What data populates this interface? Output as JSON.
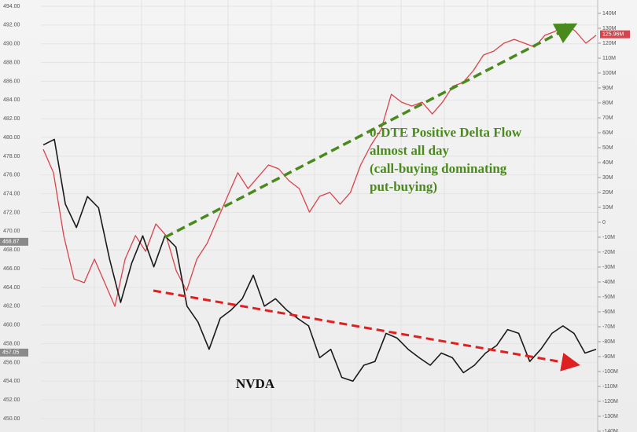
{
  "chart_data": {
    "type": "line",
    "annotations": [
      "0-DTE Positive Delta Flow",
      "almost all day",
      "(call-buying dominating",
      "put-buying)",
      "NVDA"
    ],
    "series": [
      {
        "color": "#1a1a1a",
        "values": [
          479.2,
          479.8,
          472.9,
          470.4,
          473.7,
          472.5,
          467.0,
          462.4,
          466.6,
          469.5,
          466.2,
          469.5,
          468.3,
          462.0,
          460.3,
          457.4,
          460.7,
          461.6,
          462.8,
          465.3,
          462.0,
          462.8,
          461.6,
          460.7,
          459.9,
          456.5,
          457.4,
          454.4,
          454.0,
          455.7,
          456.1,
          459.1,
          458.6,
          457.4,
          456.5,
          455.7,
          457.0,
          456.5,
          454.9,
          455.7,
          457.0,
          457.8,
          459.5,
          459.1,
          456.1,
          457.4,
          459.1,
          459.9,
          459.1,
          457.0,
          457.4
        ]
      },
      {
        "color": "#d9434b",
        "axis": "y2",
        "values": [
          48.9,
          33.2,
          -8.9,
          -37.9,
          -40.5,
          -24.7,
          -40.5,
          -56.3,
          -24.7,
          -8.9,
          -19.5,
          -1.1,
          -8.9,
          -32.6,
          -45.8,
          -24.7,
          -14.2,
          1.6,
          17.4,
          33.2,
          22.6,
          30.5,
          38.4,
          35.8,
          27.9,
          22.6,
          6.8,
          17.4,
          20.0,
          12.1,
          20.0,
          38.4,
          51.6,
          62.1,
          85.8,
          80.5,
          77.9,
          80.5,
          72.6,
          80.5,
          91.1,
          93.7,
          101.6,
          112.1,
          114.7,
          120.0,
          122.6,
          120.0,
          117.4,
          125.3,
          127.9,
          133.2,
          127.9,
          120.0,
          125.3
        ]
      }
    ],
    "ylim": [
      450,
      494
    ],
    "yticks": [
      {
        "value": 494,
        "label": "494.00"
      },
      {
        "value": 492,
        "label": "492.00"
      },
      {
        "value": 490,
        "label": "490.00"
      },
      {
        "value": 488,
        "label": "488.00"
      },
      {
        "value": 486,
        "label": "486.00"
      },
      {
        "value": 484,
        "label": "484.00"
      },
      {
        "value": 482,
        "label": "482.00"
      },
      {
        "value": 480,
        "label": "480.00"
      },
      {
        "value": 478,
        "label": "478.00"
      },
      {
        "value": 476,
        "label": "476.00"
      },
      {
        "value": 474,
        "label": "474.00"
      },
      {
        "value": 472,
        "label": "472.00"
      },
      {
        "value": 470,
        "label": "470.00"
      },
      {
        "value": 468,
        "label": "468.00"
      },
      {
        "value": 466,
        "label": "466.00"
      },
      {
        "value": 464,
        "label": "464.00"
      },
      {
        "value": 462,
        "label": "462.00"
      },
      {
        "value": 460,
        "label": "460.00"
      },
      {
        "value": 458,
        "label": "458.00"
      },
      {
        "value": 456,
        "label": "456.00"
      },
      {
        "value": 454,
        "label": "454.00"
      },
      {
        "value": 452,
        "label": "452.00"
      },
      {
        "value": 450,
        "label": "450.00"
      }
    ],
    "y2lim": [
      -140,
      140
    ],
    "y2ticks": [
      {
        "value": 140,
        "label": "140M"
      },
      {
        "value": 130,
        "label": "130M"
      },
      {
        "value": 120,
        "label": "120M"
      },
      {
        "value": 110,
        "label": "110M"
      },
      {
        "value": 100,
        "label": "100M"
      },
      {
        "value": 90,
        "label": "90M"
      },
      {
        "value": 80,
        "label": "80M"
      },
      {
        "value": 70,
        "label": "70M"
      },
      {
        "value": 60,
        "label": "60M"
      },
      {
        "value": 50,
        "label": "50M"
      },
      {
        "value": 40,
        "label": "40M"
      },
      {
        "value": 30,
        "label": "30M"
      },
      {
        "value": 20,
        "label": "20M"
      },
      {
        "value": 10,
        "label": "10M"
      },
      0,
      {
        "value": -10,
        "label": "-10M"
      },
      {
        "value": -20,
        "label": "-20M"
      },
      {
        "value": -30,
        "label": "-30M"
      },
      {
        "value": -40,
        "label": "-40M"
      },
      {
        "value": -50,
        "label": "-50M"
      },
      {
        "value": -60,
        "label": "-60M"
      },
      {
        "value": -70,
        "label": "-70M"
      },
      {
        "value": -80,
        "label": "-80M"
      },
      {
        "value": -90,
        "label": "-90M"
      },
      {
        "value": -100,
        "label": "-100M"
      },
      {
        "value": -110,
        "label": "-110M"
      },
      {
        "value": -120,
        "label": "-120M"
      },
      {
        "value": -130,
        "label": "-130M"
      },
      {
        "value": -140,
        "label": "-140M"
      }
    ],
    "y_tags": [
      468.87,
      457.05
    ],
    "y2_tags": [
      {
        "value": 125.96,
        "label": "125.96M"
      }
    ],
    "grid": true
  }
}
